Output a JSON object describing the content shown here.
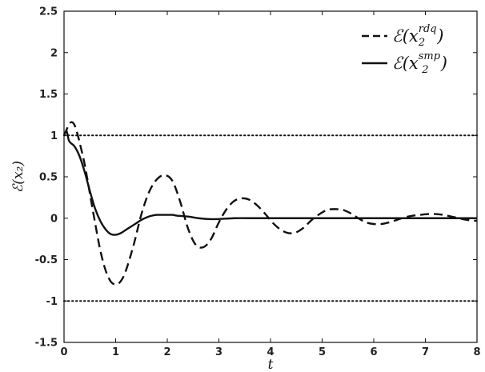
{
  "chart_data": {
    "type": "line",
    "xlabel": "t",
    "ylabel": "ℰ(x₂)",
    "xlim": [
      0,
      8
    ],
    "ylim": [
      -1.5,
      2.5
    ],
    "xticks": [
      "0",
      "1",
      "2",
      "3",
      "4",
      "5",
      "6",
      "7",
      "8"
    ],
    "yticks": [
      "2.5",
      "2",
      "1.5",
      "1",
      "0.5",
      "0",
      "-0.5",
      "-1",
      "-1.5"
    ],
    "grid": false,
    "legend_position": "top-right",
    "reference_lines": [
      {
        "y": 1,
        "style": "dotted"
      },
      {
        "y": -1,
        "style": "dotted"
      }
    ],
    "series": [
      {
        "name": "ℰ(x₂^{rdq})",
        "legend_main": "ℰ(x",
        "legend_sub": "2",
        "legend_sup": "rdq",
        "legend_close": ")",
        "style": "dashed",
        "color": "#111111",
        "x": [
          0,
          0.05,
          0.1,
          0.15,
          0.2,
          0.25,
          0.3,
          0.4,
          0.5,
          0.6,
          0.7,
          0.8,
          0.9,
          1.0,
          1.1,
          1.2,
          1.35,
          1.5,
          1.65,
          1.8,
          1.95,
          2.1,
          2.25,
          2.4,
          2.55,
          2.7,
          2.85,
          3.0,
          3.15,
          3.3,
          3.45,
          3.6,
          3.75,
          3.9,
          4.05,
          4.2,
          4.35,
          4.5,
          4.65,
          4.8,
          4.95,
          5.1,
          5.25,
          5.4,
          5.55,
          5.7,
          5.85,
          6.0,
          6.15,
          6.3,
          6.45,
          6.6,
          6.75,
          6.9,
          7.05,
          7.2,
          7.35,
          7.5,
          7.65,
          7.8,
          7.95,
          8.0
        ],
        "values": [
          1.0,
          1.07,
          1.14,
          1.16,
          1.13,
          1.04,
          0.92,
          0.65,
          0.3,
          -0.05,
          -0.38,
          -0.62,
          -0.76,
          -0.8,
          -0.76,
          -0.63,
          -0.32,
          0.05,
          0.32,
          0.47,
          0.52,
          0.45,
          0.2,
          -0.12,
          -0.32,
          -0.35,
          -0.25,
          -0.05,
          0.11,
          0.21,
          0.24,
          0.22,
          0.15,
          0.05,
          -0.06,
          -0.14,
          -0.18,
          -0.17,
          -0.11,
          -0.02,
          0.05,
          0.1,
          0.11,
          0.1,
          0.06,
          0.0,
          -0.05,
          -0.07,
          -0.07,
          -0.05,
          -0.02,
          0.01,
          0.03,
          0.04,
          0.05,
          0.05,
          0.04,
          0.02,
          0.0,
          -0.02,
          -0.03,
          -0.03
        ]
      },
      {
        "name": "ℰ(x₂^{smp})",
        "legend_main": "ℰ(x",
        "legend_sub": "2",
        "legend_sup": "smp",
        "legend_close": ")",
        "style": "solid",
        "color": "#111111",
        "x": [
          0,
          0.05,
          0.1,
          0.2,
          0.3,
          0.4,
          0.5,
          0.6,
          0.7,
          0.8,
          0.9,
          1.0,
          1.1,
          1.2,
          1.3,
          1.4,
          1.5,
          1.6,
          1.7,
          1.8,
          1.9,
          2.0,
          2.1,
          2.2,
          2.4,
          2.6,
          2.8,
          3.0,
          3.3,
          3.6,
          4.0,
          5.0,
          6.0,
          7.0,
          8.0
        ],
        "values": [
          1.0,
          1.05,
          0.93,
          0.87,
          0.75,
          0.56,
          0.33,
          0.12,
          -0.03,
          -0.13,
          -0.19,
          -0.2,
          -0.18,
          -0.14,
          -0.1,
          -0.06,
          -0.02,
          0.01,
          0.03,
          0.04,
          0.04,
          0.04,
          0.04,
          0.03,
          0.02,
          0.0,
          -0.01,
          -0.01,
          0.0,
          0.0,
          0.0,
          0.0,
          0.0,
          0.0,
          0.0
        ]
      }
    ]
  }
}
